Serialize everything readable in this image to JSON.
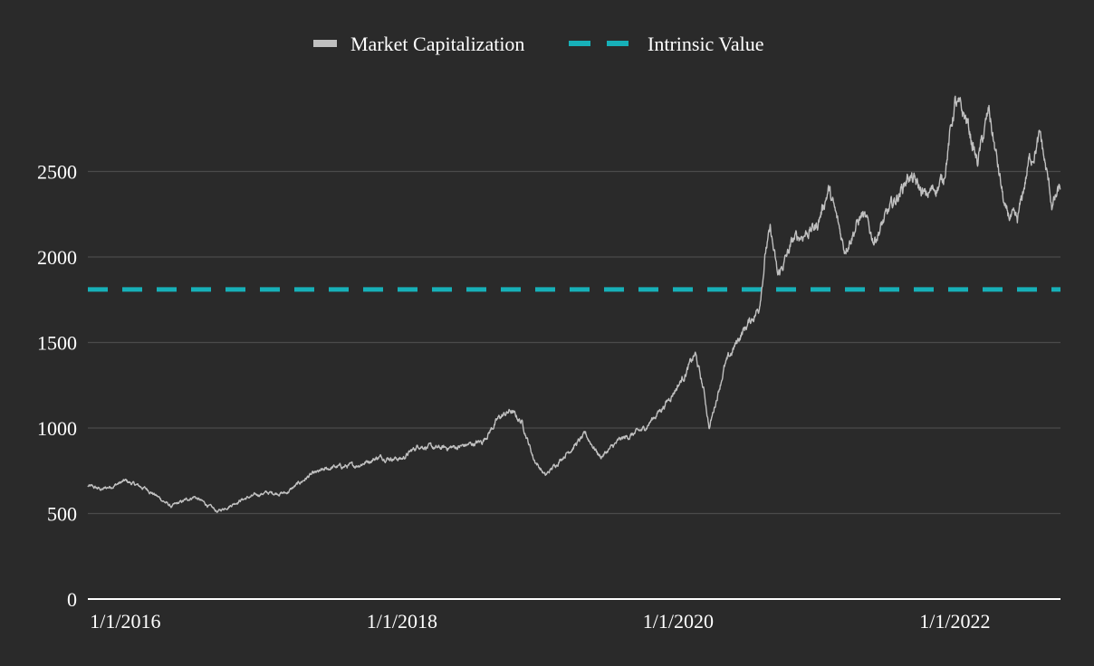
{
  "chart_data": {
    "type": "line",
    "title": "",
    "xlabel": "",
    "ylabel": "",
    "ylim": [
      0,
      3000
    ],
    "xlim": [
      "2015-09-24",
      "2022-10-07"
    ],
    "grid": true,
    "legend_position": "top-center",
    "y_ticks": [
      0,
      500,
      1000,
      1500,
      2000,
      2500
    ],
    "x_ticks": [
      {
        "date": "2016-01-01",
        "label": "1/1/2016"
      },
      {
        "date": "2018-01-01",
        "label": "1/1/2018"
      },
      {
        "date": "2020-01-01",
        "label": "1/1/2020"
      },
      {
        "date": "2022-01-01",
        "label": "1/1/2022"
      }
    ],
    "series": [
      {
        "name": "Market Capitalization",
        "color": "#c0c0c0",
        "style": "solid",
        "points": [
          [
            "2015-09-24",
            660
          ],
          [
            "2015-11-01",
            640
          ],
          [
            "2016-01-01",
            690
          ],
          [
            "2016-03-01",
            640
          ],
          [
            "2016-05-01",
            540
          ],
          [
            "2016-07-01",
            600
          ],
          [
            "2016-09-01",
            510
          ],
          [
            "2016-11-01",
            580
          ],
          [
            "2017-01-01",
            620
          ],
          [
            "2017-03-01",
            620
          ],
          [
            "2017-05-01",
            720
          ],
          [
            "2017-07-01",
            770
          ],
          [
            "2017-09-01",
            780
          ],
          [
            "2017-11-01",
            830
          ],
          [
            "2018-01-01",
            820
          ],
          [
            "2018-02-15",
            900
          ],
          [
            "2018-04-01",
            880
          ],
          [
            "2018-06-01",
            890
          ],
          [
            "2018-08-01",
            920
          ],
          [
            "2018-09-15",
            1060
          ],
          [
            "2018-10-15",
            1100
          ],
          [
            "2018-11-15",
            1030
          ],
          [
            "2018-12-15",
            820
          ],
          [
            "2019-01-15",
            720
          ],
          [
            "2019-03-01",
            830
          ],
          [
            "2019-05-01",
            960
          ],
          [
            "2019-06-10",
            830
          ],
          [
            "2019-08-01",
            930
          ],
          [
            "2019-10-01",
            990
          ],
          [
            "2019-12-01",
            1150
          ],
          [
            "2020-01-15",
            1300
          ],
          [
            "2020-02-15",
            1430
          ],
          [
            "2020-03-10",
            1200
          ],
          [
            "2020-03-23",
            1000
          ],
          [
            "2020-05-01",
            1350
          ],
          [
            "2020-06-15",
            1550
          ],
          [
            "2020-08-01",
            1700
          ],
          [
            "2020-08-20",
            2050
          ],
          [
            "2020-09-01",
            2150
          ],
          [
            "2020-09-20",
            1880
          ],
          [
            "2020-11-01",
            2100
          ],
          [
            "2021-01-01",
            2180
          ],
          [
            "2021-02-01",
            2400
          ],
          [
            "2021-03-15",
            2050
          ],
          [
            "2021-05-01",
            2250
          ],
          [
            "2021-06-01",
            2100
          ],
          [
            "2021-08-01",
            2350
          ],
          [
            "2021-09-01",
            2480
          ],
          [
            "2021-10-15",
            2350
          ],
          [
            "2021-12-01",
            2450
          ],
          [
            "2022-01-01",
            2900
          ],
          [
            "2022-02-01",
            2800
          ],
          [
            "2022-03-01",
            2550
          ],
          [
            "2022-04-01",
            2850
          ],
          [
            "2022-05-15",
            2250
          ],
          [
            "2022-06-15",
            2200
          ],
          [
            "2022-07-15",
            2550
          ],
          [
            "2022-08-15",
            2700
          ],
          [
            "2022-09-15",
            2300
          ],
          [
            "2022-10-07",
            2400
          ]
        ]
      },
      {
        "name": "Intrinsic Value",
        "color": "#17b0b8",
        "style": "dashed",
        "value": 1810
      }
    ]
  }
}
